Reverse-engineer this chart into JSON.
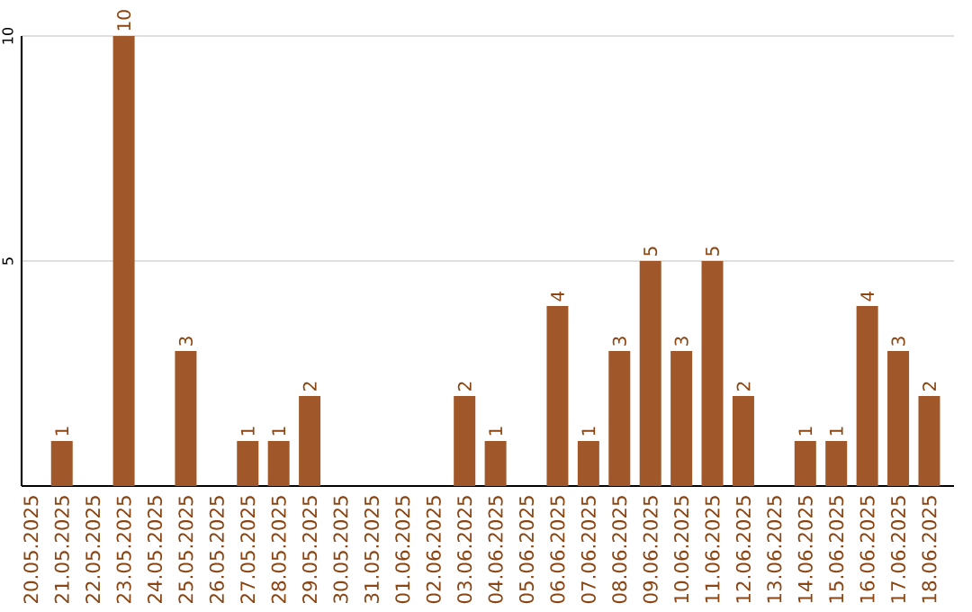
{
  "chart_data": {
    "type": "bar",
    "categories": [
      "20.05.2025",
      "21.05.2025",
      "22.05.2025",
      "23.05.2025",
      "24.05.2025",
      "25.05.2025",
      "26.05.2025",
      "27.05.2025",
      "28.05.2025",
      "29.05.2025",
      "30.05.2025",
      "31.05.2025",
      "01.06.2025",
      "02.06.2025",
      "03.06.2025",
      "04.06.2025",
      "05.06.2025",
      "06.06.2025",
      "07.06.2025",
      "08.06.2025",
      "09.06.2025",
      "10.06.2025",
      "11.06.2025",
      "12.06.2025",
      "13.06.2025",
      "14.06.2025",
      "15.06.2025",
      "16.06.2025",
      "17.06.2025",
      "18.06.2025"
    ],
    "values": [
      0,
      1,
      0,
      10,
      0,
      3,
      0,
      1,
      1,
      2,
      0,
      0,
      0,
      0,
      2,
      1,
      0,
      4,
      1,
      3,
      5,
      3,
      5,
      2,
      0,
      1,
      1,
      4,
      3,
      2
    ],
    "value_labels": [
      null,
      "1",
      null,
      "10",
      null,
      "3",
      null,
      "1",
      "1",
      "2",
      null,
      null,
      null,
      null,
      "2",
      "1",
      null,
      "4",
      "1",
      "3",
      "5",
      "3",
      "5",
      "2",
      null,
      "1",
      "1",
      "4",
      "3",
      "2"
    ],
    "color": "#a0582a",
    "ylim": [
      0,
      10
    ],
    "yticks": [
      5,
      10
    ],
    "grid": "y"
  }
}
